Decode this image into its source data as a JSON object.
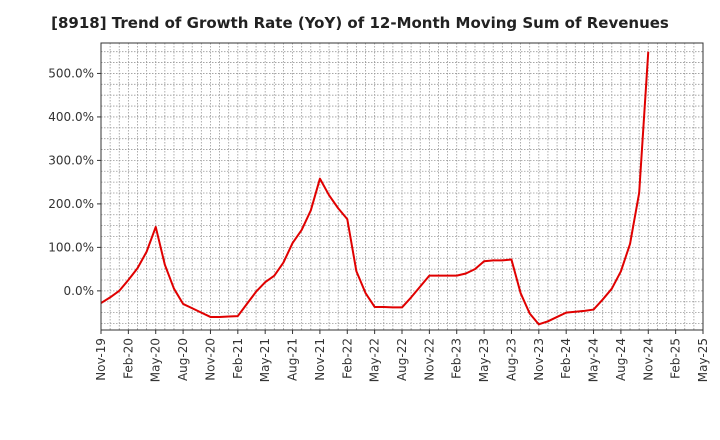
{
  "chart_data": {
    "type": "line",
    "title": "[8918]  Trend of Growth Rate (YoY) of 12-Month Moving Sum of Revenues",
    "xlabel": "",
    "ylabel": "",
    "ylim": [
      -90,
      570
    ],
    "yticks": [
      0,
      100,
      200,
      300,
      400,
      500
    ],
    "ytick_labels": [
      "0.0%",
      "100.0%",
      "200.0%",
      "300.0%",
      "400.0%",
      "500.0%"
    ],
    "xtick_labels": [
      "Nov-19",
      "Feb-20",
      "May-20",
      "Aug-20",
      "Nov-20",
      "Feb-21",
      "May-21",
      "Aug-21",
      "Nov-21",
      "Feb-22",
      "May-22",
      "Aug-22",
      "Nov-22",
      "Feb-23",
      "May-23",
      "Aug-23",
      "Nov-23",
      "Feb-24",
      "May-24",
      "Aug-24",
      "Nov-24",
      "Feb-25",
      "May-25"
    ],
    "grid": true,
    "legend": "none",
    "series": [
      {
        "color": "#e00000",
        "x": [
          "Nov-19",
          "Dec-19",
          "Jan-20",
          "Feb-20",
          "Mar-20",
          "Apr-20",
          "May-20",
          "Jun-20",
          "Jul-20",
          "Aug-20",
          "Sep-20",
          "Oct-20",
          "Nov-20",
          "Dec-20",
          "Jan-21",
          "Feb-21",
          "Mar-21",
          "Apr-21",
          "May-21",
          "Jun-21",
          "Jul-21",
          "Aug-21",
          "Sep-21",
          "Oct-21",
          "Nov-21",
          "Dec-21",
          "Jan-22",
          "Feb-22",
          "Mar-22",
          "Apr-22",
          "May-22",
          "Jun-22",
          "Jul-22",
          "Aug-22",
          "Sep-22",
          "Oct-22",
          "Nov-22",
          "Dec-22",
          "Jan-23",
          "Feb-23",
          "Mar-23",
          "Apr-23",
          "May-23",
          "Jun-23",
          "Jul-23",
          "Aug-23",
          "Sep-23",
          "Oct-23",
          "Nov-23",
          "Dec-23",
          "Jan-24",
          "Feb-24",
          "Mar-24",
          "Apr-24",
          "May-24",
          "Jun-24",
          "Jul-24",
          "Aug-24",
          "Sep-24",
          "Oct-24",
          "Nov-24"
        ],
        "values": [
          -28,
          -15,
          0,
          25,
          52,
          90,
          147,
          60,
          5,
          -30,
          -40,
          -50,
          -60,
          -60,
          -59,
          -58,
          -30,
          -2,
          20,
          35,
          65,
          110,
          140,
          185,
          258,
          220,
          190,
          165,
          45,
          -5,
          -37,
          -37,
          -38,
          -38,
          -15,
          10,
          35,
          35,
          35,
          35,
          40,
          50,
          68,
          70,
          70,
          72,
          -5,
          -52,
          -77,
          -70,
          -60,
          -50,
          -48,
          -46,
          -43,
          -20,
          5,
          45,
          108,
          225,
          550
        ]
      }
    ]
  }
}
